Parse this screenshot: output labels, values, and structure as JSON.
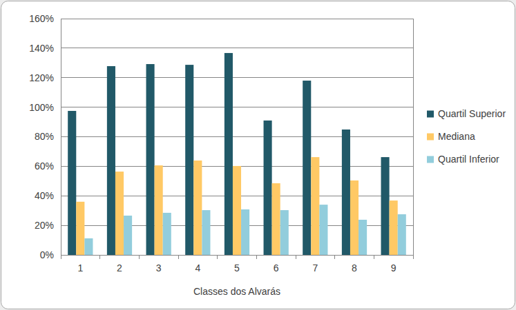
{
  "chart_data": {
    "type": "bar",
    "x_label": "Classes dos Alvarás",
    "categories": [
      "1",
      "2",
      "3",
      "4",
      "5",
      "6",
      "7",
      "8",
      "9"
    ],
    "series": [
      {
        "name": "Quartil Superior",
        "color": "#215968",
        "values": [
          97.5,
          127.8,
          129.2,
          128.7,
          136.7,
          91.0,
          118.0,
          84.9,
          66.2
        ]
      },
      {
        "name": "Mediana",
        "color": "#ffc965",
        "values": [
          36.0,
          56.4,
          60.6,
          63.9,
          60.2,
          48.5,
          66.2,
          50.4,
          36.8
        ]
      },
      {
        "name": "Quartil Inferior",
        "color": "#92cddc",
        "values": [
          11.2,
          26.6,
          28.5,
          30.3,
          30.8,
          30.3,
          34.0,
          23.8,
          27.5
        ]
      }
    ],
    "ylim": [
      0,
      160
    ],
    "yticks": [
      {
        "value": 0,
        "label": "0%"
      },
      {
        "value": 20,
        "label": "20%"
      },
      {
        "value": 40,
        "label": "40%"
      },
      {
        "value": 60,
        "label": "60%"
      },
      {
        "value": 80,
        "label": "80%"
      },
      {
        "value": 100,
        "label": "100%"
      },
      {
        "value": 120,
        "label": "120%"
      },
      {
        "value": 140,
        "label": "140%"
      },
      {
        "value": 160,
        "label": "160%"
      }
    ],
    "grid": true,
    "legend": "right"
  }
}
